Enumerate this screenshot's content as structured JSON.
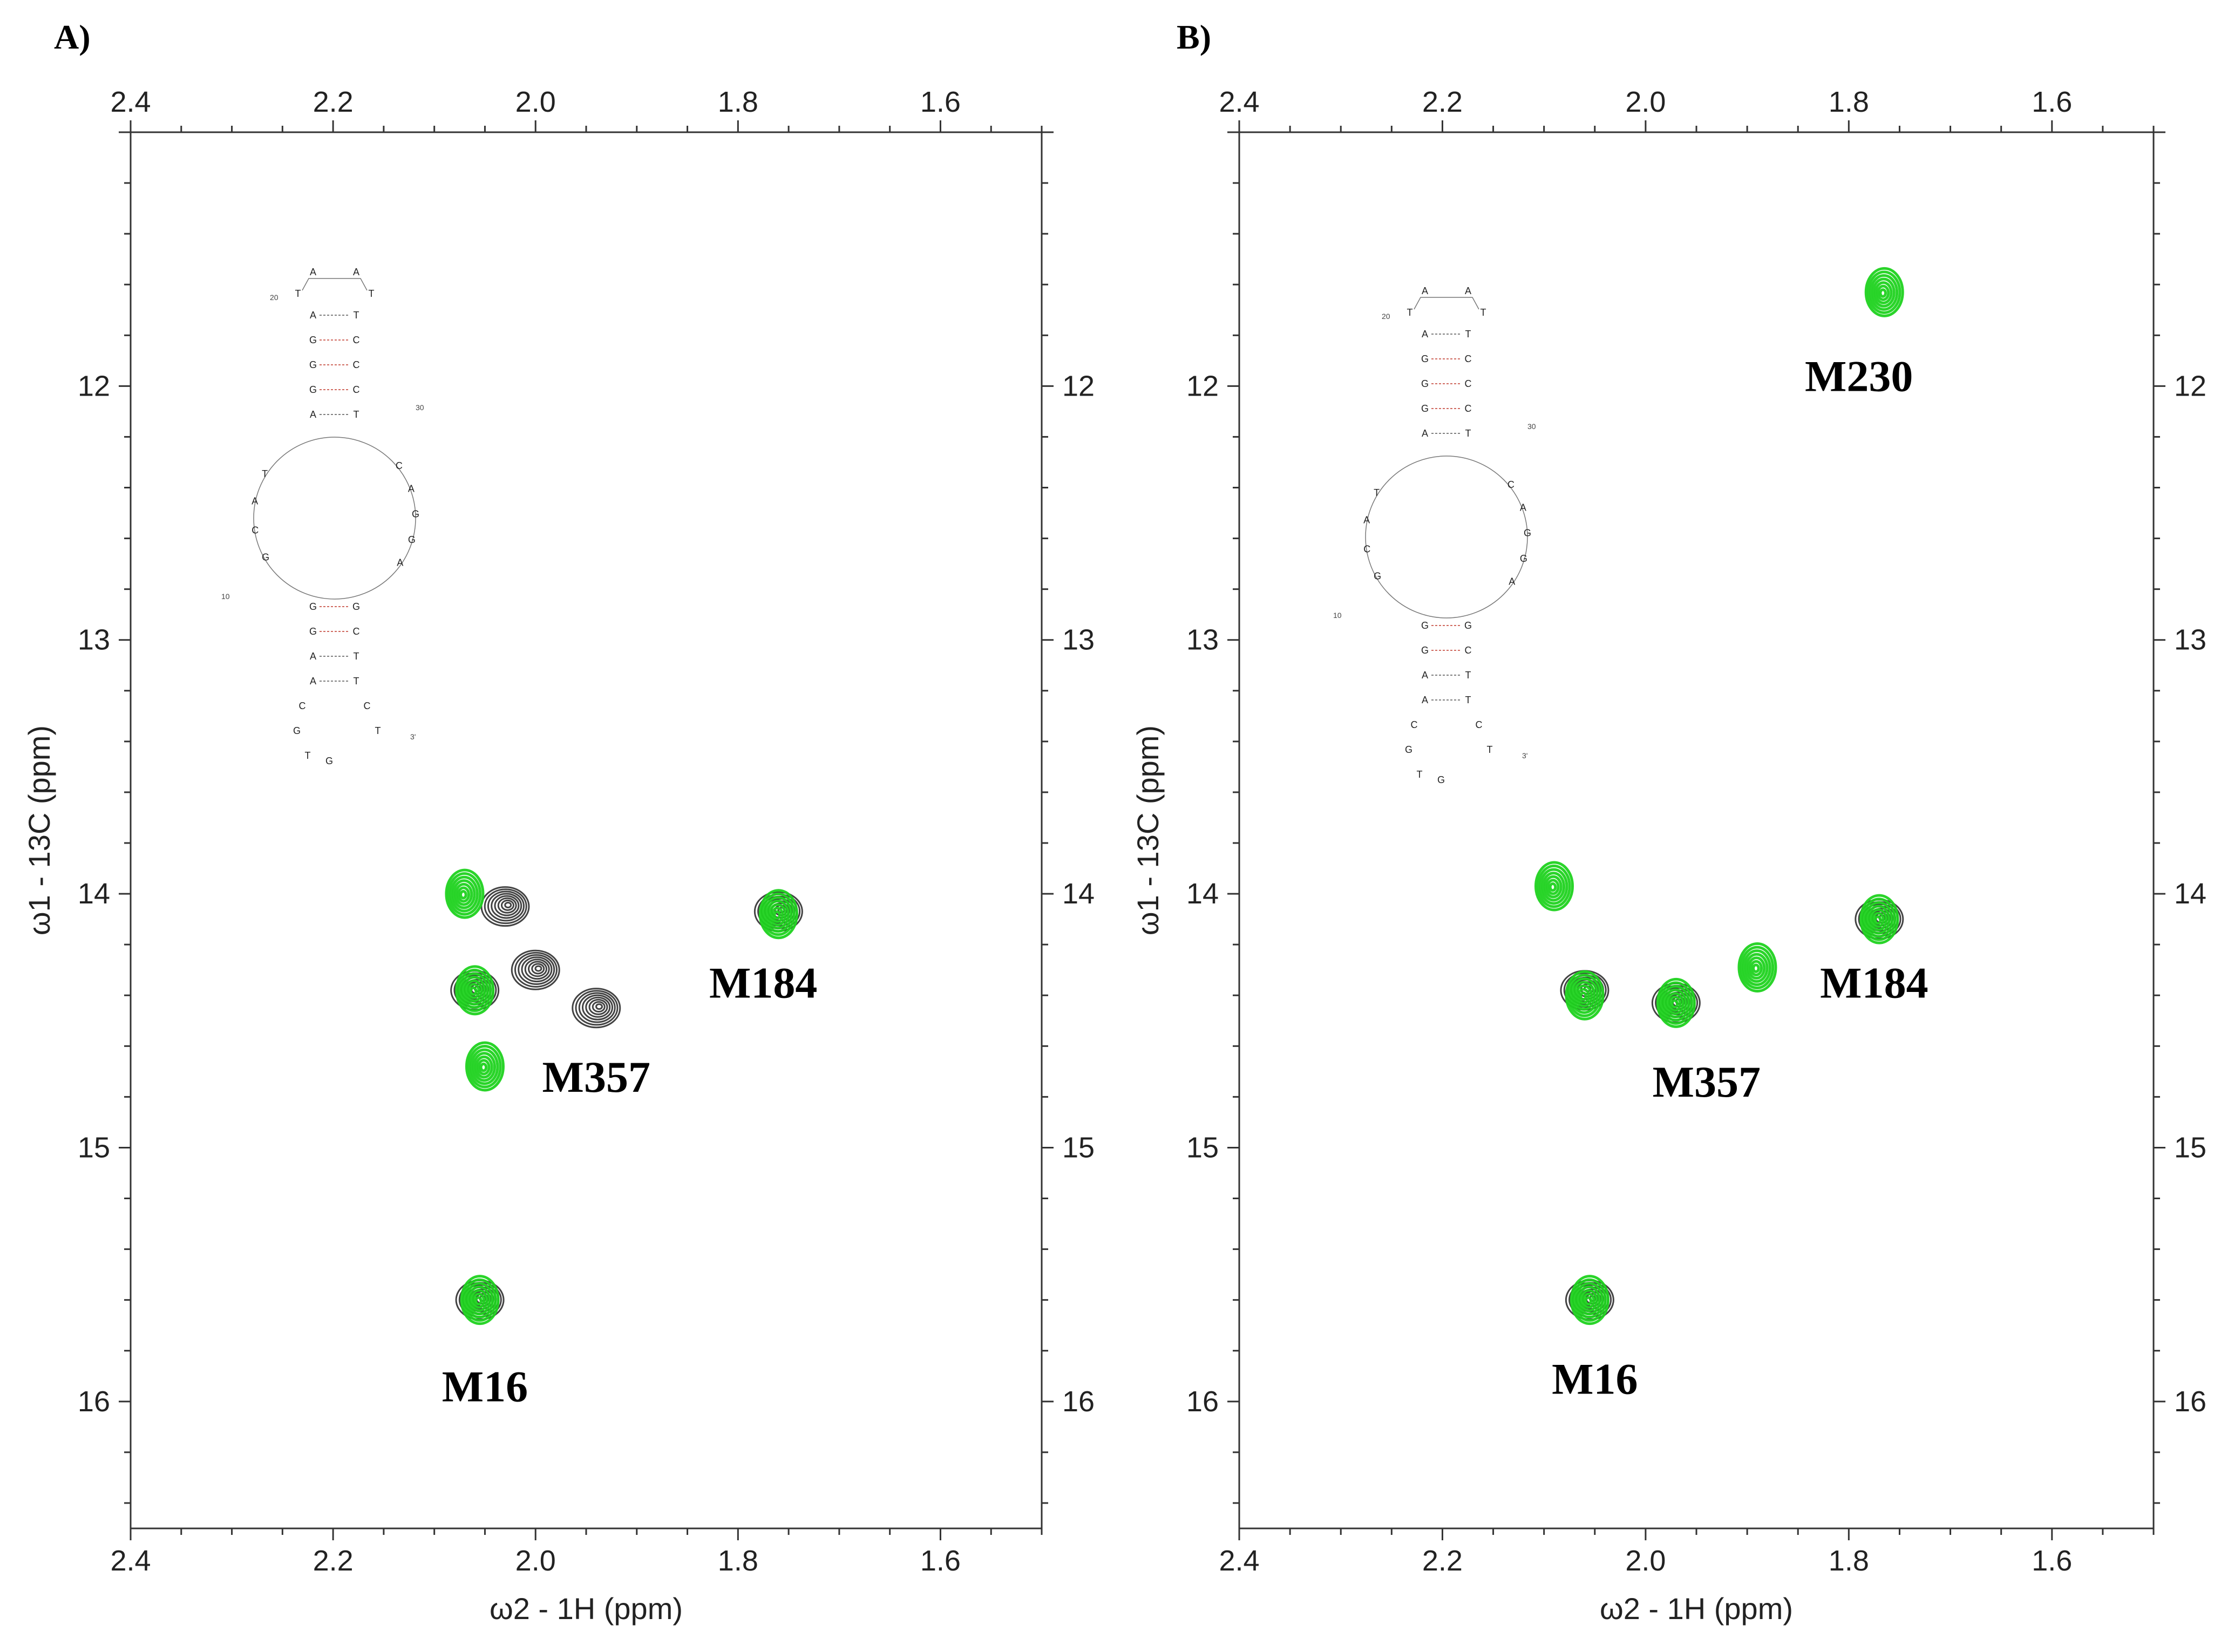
{
  "chart_data": [
    {
      "type": "scatter",
      "panel": "A)",
      "title": "",
      "xlabel": "ω2 - 1H (ppm)",
      "ylabel": "ω1 - 13C (ppm)",
      "xlim": [
        2.4,
        1.5
      ],
      "ylim": [
        11.0,
        16.5
      ],
      "xticks": [
        "2.4",
        "2.2",
        "2.0",
        "1.8",
        "1.6"
      ],
      "yticks": [
        "12",
        "13",
        "14",
        "15",
        "16"
      ],
      "series": [
        {
          "name": "black",
          "color": "#222222",
          "points": [
            [
              2.06,
              14.38
            ],
            [
              2.03,
              14.05
            ],
            [
              2.0,
              14.3
            ],
            [
              1.94,
              14.45
            ],
            [
              1.76,
              14.07
            ],
            [
              2.055,
              15.6
            ]
          ]
        },
        {
          "name": "green",
          "color": "#1fd21f",
          "points": [
            [
              2.07,
              14.0
            ],
            [
              2.06,
              14.38
            ],
            [
              2.05,
              14.68
            ],
            [
              1.76,
              14.08
            ],
            [
              2.055,
              15.6
            ]
          ]
        }
      ],
      "annotations": [
        {
          "label": "M184",
          "x": 1.775,
          "y": 14.35
        },
        {
          "label": "M357",
          "x": 1.94,
          "y": 14.72
        },
        {
          "label": "M16",
          "x": 2.05,
          "y": 15.94
        }
      ]
    },
    {
      "type": "scatter",
      "panel": "B)",
      "title": "",
      "xlabel": "ω2 - 1H (ppm)",
      "ylabel": "ω1 - 13C (ppm)",
      "xlim": [
        2.4,
        1.5
      ],
      "ylim": [
        11.0,
        16.5
      ],
      "xticks": [
        "2.4",
        "2.2",
        "2.0",
        "1.8",
        "1.6"
      ],
      "yticks": [
        "12",
        "13",
        "14",
        "15",
        "16"
      ],
      "series": [
        {
          "name": "black",
          "color": "#222222",
          "points": [
            [
              2.06,
              14.38
            ],
            [
              1.97,
              14.43
            ],
            [
              1.77,
              14.1
            ],
            [
              2.055,
              15.6
            ]
          ]
        },
        {
          "name": "green",
          "color": "#1fd21f",
          "points": [
            [
              2.06,
              14.4
            ],
            [
              1.97,
              14.43
            ],
            [
              1.77,
              14.1
            ],
            [
              2.055,
              15.6
            ],
            [
              1.765,
              11.63
            ],
            [
              2.09,
              13.97
            ],
            [
              1.89,
              14.29
            ]
          ]
        }
      ],
      "annotations": [
        {
          "label": "M230",
          "x": 1.79,
          "y": 11.96
        },
        {
          "label": "M184",
          "x": 1.775,
          "y": 14.35
        },
        {
          "label": "M357",
          "x": 1.94,
          "y": 14.74
        },
        {
          "label": "M16",
          "x": 2.05,
          "y": 15.91
        }
      ]
    }
  ],
  "rna_inset": {
    "loop_top": [
      "A",
      "A"
    ],
    "loop_left": "T",
    "loop_right": "T",
    "stem1_left": [
      "A",
      "G",
      "G",
      "G",
      "A"
    ],
    "stem1_right": [
      "T",
      "C",
      "C",
      "C",
      "T"
    ],
    "bulge_left": [
      "G",
      "C",
      "A",
      "T"
    ],
    "bulge_right": [
      "C",
      "A",
      "G",
      "G",
      "A"
    ],
    "stem2_left": [
      "G",
      "G",
      "A",
      "A"
    ],
    "stem2_right": [
      "G",
      "C",
      "T",
      "T"
    ],
    "tail_left": [
      "C",
      "G",
      "T",
      "G"
    ],
    "tail_right": [
      "C",
      "T"
    ],
    "numbers": [
      "20",
      "30",
      "10",
      "3'"
    ]
  }
}
